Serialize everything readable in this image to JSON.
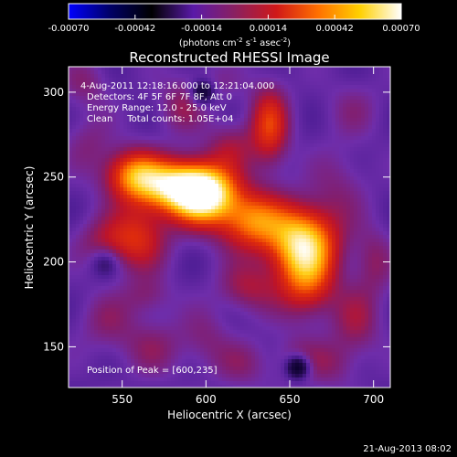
{
  "chart_data": {
    "type": "heatmap",
    "title": "Reconstructed RHESSI Image",
    "xlabel": "Heliocentric X (arcsec)",
    "ylabel": "Heliocentric Y (arcsec)",
    "xlim": [
      518,
      710
    ],
    "ylim": [
      126,
      315
    ],
    "x_ticks": [
      550,
      600,
      650,
      700
    ],
    "y_ticks": [
      150,
      200,
      250,
      300
    ],
    "colorbar": {
      "range": [
        -0.0007,
        0.0007
      ],
      "ticks": [
        "-0.00070",
        "-0.00042",
        "-0.00014",
        "0.00014",
        "0.00042",
        "0.00070"
      ],
      "unit_prefix": "(photons cm",
      "unit_exp1": "-2",
      "unit_mid": " s",
      "unit_exp2": "-1",
      "unit_mid2": " asec",
      "unit_exp3": "-2",
      "unit_suffix": ")",
      "colors": [
        "#0000ff",
        "#000066",
        "#000000",
        "#5a1aa8",
        "#8a2060",
        "#d01818",
        "#ff7000",
        "#ffd000",
        "#ffffff"
      ]
    },
    "annotations": {
      "time": "4-Aug-2011 12:18:16.000 to 12:21:04.000",
      "detectors": "Detectors: 4F 5F 6F 7F 8F, Att 0",
      "energy": "Energy Range: 12.0 - 25.0 keV",
      "clean": "Clean     Total counts: 1.05E+04",
      "peak": "Position of Peak = [600,235]"
    },
    "features": [
      {
        "x": 598,
        "y": 240,
        "value": 0.0007,
        "sx": 14,
        "sy": 12
      },
      {
        "x": 578,
        "y": 245,
        "value": 0.00045,
        "sx": 16,
        "sy": 10
      },
      {
        "x": 557,
        "y": 252,
        "value": 0.0004,
        "sx": 12,
        "sy": 10
      },
      {
        "x": 628,
        "y": 224,
        "value": 0.00042,
        "sx": 14,
        "sy": 12
      },
      {
        "x": 658,
        "y": 212,
        "value": 0.00055,
        "sx": 14,
        "sy": 14
      },
      {
        "x": 660,
        "y": 188,
        "value": 0.00035,
        "sx": 12,
        "sy": 14
      },
      {
        "x": 560,
        "y": 215,
        "value": 0.0003,
        "sx": 12,
        "sy": 14
      },
      {
        "x": 540,
        "y": 212,
        "value": 0.0002,
        "sx": 12,
        "sy": 10
      },
      {
        "x": 625,
        "y": 185,
        "value": 0.00022,
        "sx": 12,
        "sy": 10
      },
      {
        "x": 638,
        "y": 280,
        "value": 0.00035,
        "sx": 8,
        "sy": 16
      },
      {
        "x": 585,
        "y": 290,
        "value": 0.00018,
        "sx": 10,
        "sy": 10
      },
      {
        "x": 615,
        "y": 268,
        "value": 0.0002,
        "sx": 10,
        "sy": 10
      },
      {
        "x": 680,
        "y": 245,
        "value": 0.00015,
        "sx": 12,
        "sy": 16
      },
      {
        "x": 688,
        "y": 290,
        "value": 0.00014,
        "sx": 12,
        "sy": 12
      },
      {
        "x": 700,
        "y": 200,
        "value": 0.00018,
        "sx": 8,
        "sy": 14
      },
      {
        "x": 690,
        "y": 165,
        "value": 0.0002,
        "sx": 10,
        "sy": 14
      },
      {
        "x": 568,
        "y": 150,
        "value": 0.00017,
        "sx": 14,
        "sy": 12
      },
      {
        "x": 622,
        "y": 140,
        "value": 0.00016,
        "sx": 12,
        "sy": 10
      },
      {
        "x": 655,
        "y": 142,
        "value": 0.00017,
        "sx": 10,
        "sy": 10
      },
      {
        "x": 540,
        "y": 165,
        "value": 0.00016,
        "sx": 12,
        "sy": 12
      },
      {
        "x": 530,
        "y": 270,
        "value": 0.00015,
        "sx": 10,
        "sy": 12
      },
      {
        "x": 528,
        "y": 305,
        "value": 0.00016,
        "sx": 10,
        "sy": 10
      },
      {
        "x": 600,
        "y": 304,
        "value": 0.00014,
        "sx": 14,
        "sy": 8
      },
      {
        "x": 565,
        "y": 180,
        "value": 0.00016,
        "sx": 10,
        "sy": 8
      },
      {
        "x": 600,
        "y": 155,
        "value": 0.00015,
        "sx": 10,
        "sy": 12
      },
      {
        "x": 676,
        "y": 140,
        "value": 0.00016,
        "sx": 10,
        "sy": 10
      },
      {
        "x": 655,
        "y": 138,
        "value": -0.0003,
        "sx": 5,
        "sy": 5
      },
      {
        "x": 598,
        "y": 300,
        "value": -0.00025,
        "sx": 5,
        "sy": 5
      },
      {
        "x": 540,
        "y": 200,
        "value": -0.00012,
        "sx": 6,
        "sy": 6
      }
    ],
    "base_level": 0.00012,
    "grid": false
  },
  "footer": {
    "timestamp": "21-Aug-2013 08:02"
  }
}
